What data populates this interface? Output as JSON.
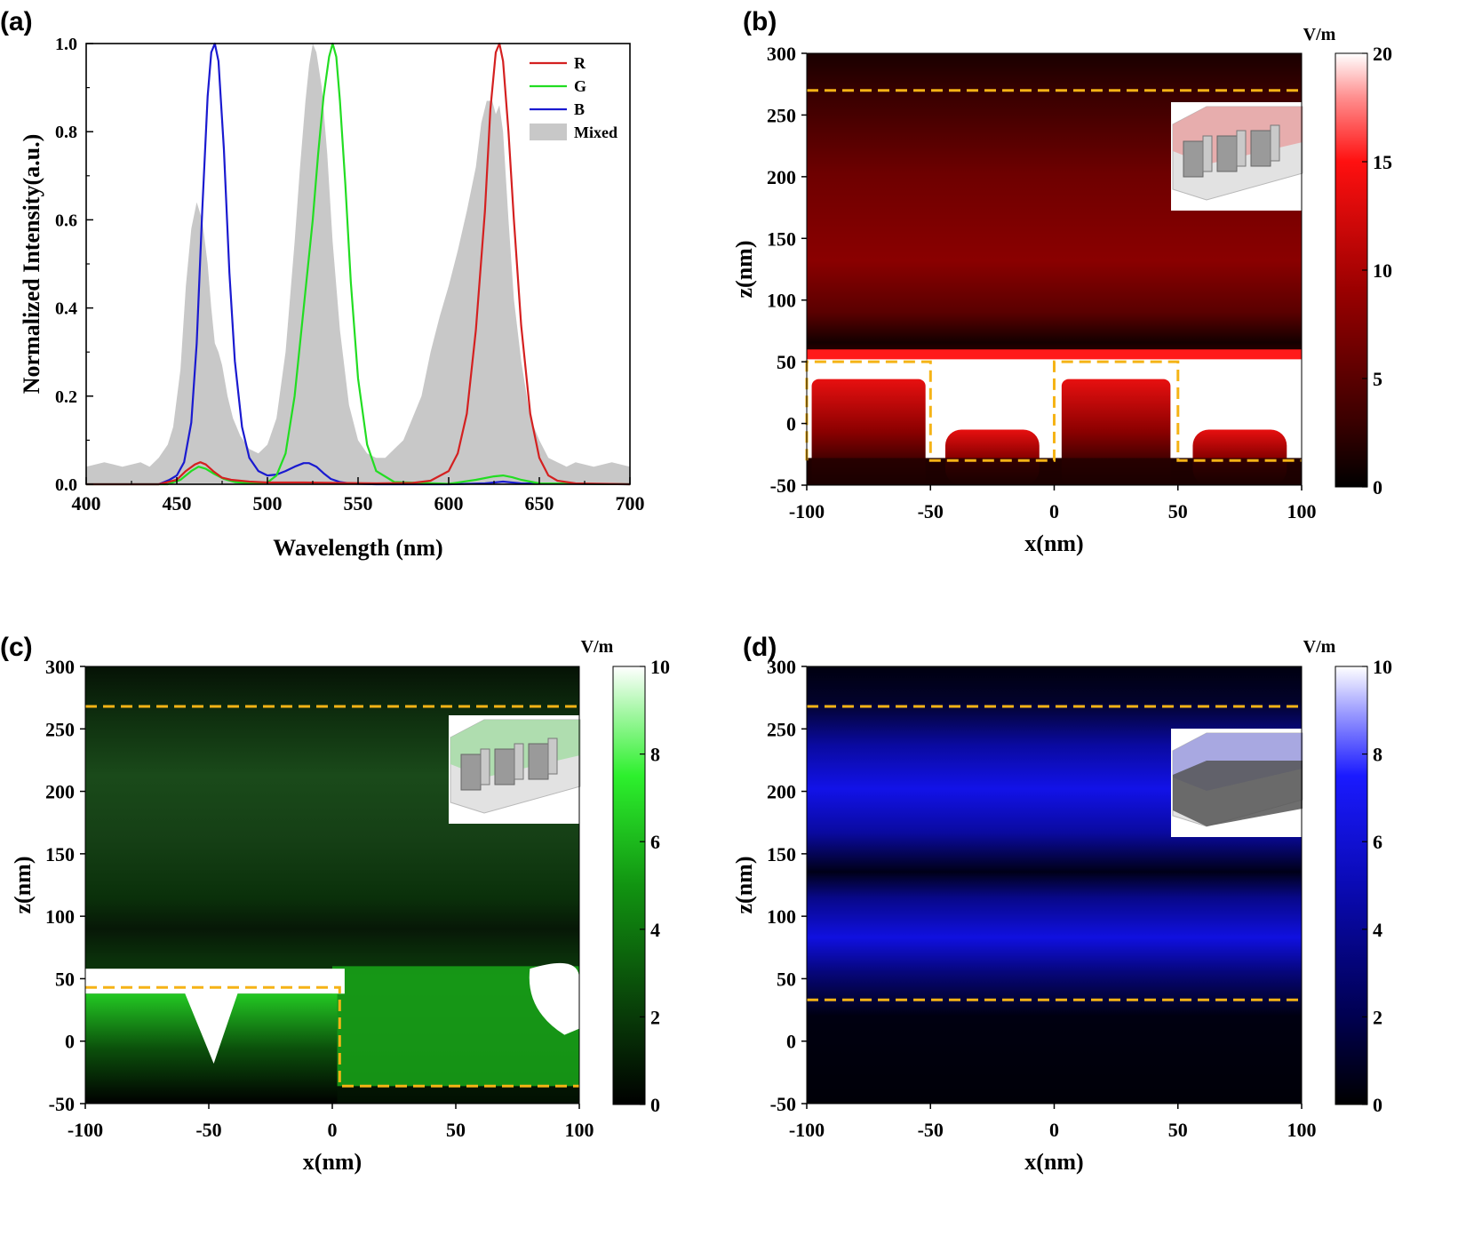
{
  "panels": {
    "a": "(a)",
    "b": "(b)",
    "c": "(c)",
    "d": "(d)"
  },
  "colors": {
    "R": "#d42020",
    "G": "#22dd22",
    "B": "#1a1ad0",
    "Mixed": "#c8c8c8",
    "guide": "#f5b316"
  },
  "chart_data": [
    {
      "type": "line",
      "panel": "a",
      "title": "",
      "xlabel": "Wavelength (nm)",
      "ylabel": "Normalized Intensity(a.u.)",
      "xlim": [
        400,
        700
      ],
      "ylim": [
        0,
        1.0
      ],
      "xticks": [
        400,
        450,
        500,
        550,
        600,
        650,
        700
      ],
      "yticks": [
        0.0,
        0.2,
        0.4,
        0.6,
        0.8,
        1.0
      ],
      "legend_position": "top-right",
      "series": [
        {
          "name": "R",
          "x": [
            400,
            440,
            450,
            455,
            460,
            463,
            466,
            470,
            475,
            480,
            490,
            500,
            520,
            540,
            560,
            580,
            590,
            600,
            605,
            610,
            615,
            620,
            623,
            626,
            628,
            630,
            633,
            636,
            640,
            645,
            650,
            655,
            660,
            670,
            700
          ],
          "y": [
            0,
            0,
            0.01,
            0.03,
            0.045,
            0.05,
            0.045,
            0.03,
            0.015,
            0.01,
            0.006,
            0.004,
            0.004,
            0.003,
            0.002,
            0.003,
            0.008,
            0.03,
            0.07,
            0.16,
            0.35,
            0.62,
            0.85,
            0.98,
            1.0,
            0.96,
            0.8,
            0.6,
            0.36,
            0.16,
            0.06,
            0.02,
            0.008,
            0.002,
            0
          ]
        },
        {
          "name": "G",
          "x": [
            400,
            445,
            452,
            458,
            462,
            466,
            470,
            476,
            482,
            490,
            500,
            505,
            510,
            515,
            520,
            525,
            528,
            531,
            534,
            536,
            538,
            540,
            543,
            546,
            550,
            555,
            560,
            570,
            600,
            615,
            625,
            630,
            635,
            640,
            650,
            700
          ],
          "y": [
            0,
            0,
            0.01,
            0.03,
            0.04,
            0.035,
            0.025,
            0.012,
            0.005,
            0.002,
            0.004,
            0.02,
            0.07,
            0.2,
            0.4,
            0.6,
            0.75,
            0.88,
            0.97,
            1.0,
            0.97,
            0.87,
            0.68,
            0.46,
            0.24,
            0.09,
            0.03,
            0.005,
            0.001,
            0.01,
            0.018,
            0.02,
            0.016,
            0.01,
            0.002,
            0
          ]
        },
        {
          "name": "B",
          "x": [
            400,
            440,
            446,
            450,
            454,
            458,
            461,
            464,
            467,
            469,
            471,
            473,
            476,
            479,
            482,
            486,
            490,
            495,
            500,
            505,
            510,
            515,
            520,
            523,
            527,
            531,
            535,
            540,
            545,
            550,
            560,
            600,
            620,
            630,
            640,
            700
          ],
          "y": [
            0,
            0,
            0.01,
            0.02,
            0.05,
            0.14,
            0.32,
            0.62,
            0.88,
            0.98,
            1.0,
            0.96,
            0.76,
            0.48,
            0.28,
            0.13,
            0.06,
            0.03,
            0.02,
            0.022,
            0.03,
            0.04,
            0.048,
            0.048,
            0.04,
            0.025,
            0.012,
            0.005,
            0.002,
            0.001,
            0,
            0,
            0.002,
            0.006,
            0.002,
            0
          ]
        },
        {
          "name": "Mixed",
          "style": "filled",
          "x": [
            400,
            410,
            420,
            430,
            435,
            440,
            445,
            448,
            452,
            455,
            458,
            461,
            464,
            467,
            469,
            471,
            473,
            475,
            478,
            481,
            485,
            490,
            495,
            500,
            505,
            510,
            515,
            518,
            521,
            523,
            525,
            527,
            530,
            533,
            536,
            540,
            545,
            550,
            555,
            560,
            565,
            570,
            575,
            580,
            585,
            590,
            595,
            600,
            605,
            610,
            615,
            618,
            621,
            624,
            626,
            628,
            630,
            633,
            636,
            640,
            645,
            650,
            655,
            660,
            665,
            670,
            680,
            690,
            700
          ],
          "y": [
            0.04,
            0.05,
            0.04,
            0.05,
            0.04,
            0.06,
            0.09,
            0.13,
            0.26,
            0.45,
            0.58,
            0.64,
            0.6,
            0.5,
            0.4,
            0.32,
            0.3,
            0.27,
            0.2,
            0.15,
            0.11,
            0.08,
            0.07,
            0.09,
            0.15,
            0.3,
            0.55,
            0.72,
            0.87,
            0.95,
            1.0,
            0.98,
            0.9,
            0.75,
            0.55,
            0.35,
            0.18,
            0.1,
            0.07,
            0.06,
            0.06,
            0.08,
            0.1,
            0.15,
            0.2,
            0.3,
            0.38,
            0.45,
            0.53,
            0.62,
            0.72,
            0.82,
            0.87,
            0.87,
            0.84,
            0.86,
            0.8,
            0.6,
            0.42,
            0.28,
            0.15,
            0.1,
            0.06,
            0.05,
            0.04,
            0.05,
            0.04,
            0.05,
            0.04
          ]
        }
      ]
    },
    {
      "type": "heatmap",
      "panel": "b",
      "color": "red",
      "xlabel": "x(nm)",
      "ylabel": "z(nm)",
      "xlim": [
        -100,
        100
      ],
      "ylim": [
        -50,
        300
      ],
      "xticks": [
        -100,
        -50,
        0,
        50,
        100
      ],
      "yticks": [
        -50,
        0,
        50,
        100,
        150,
        200,
        250,
        300
      ],
      "colorbar": {
        "unit": "V/m",
        "range": [
          0,
          20
        ],
        "ticks": [
          0,
          5,
          10,
          15,
          20
        ]
      },
      "guides": [
        {
          "x": [
            -100,
            100
          ],
          "z": [
            270,
            270
          ]
        },
        {
          "x": [
            -100,
            -100,
            -50,
            -50,
            0,
            0,
            50,
            50,
            100
          ],
          "z": [
            -30,
            50,
            50,
            -30,
            -30,
            50,
            50,
            -30,
            -30
          ]
        }
      ]
    },
    {
      "type": "heatmap",
      "panel": "c",
      "color": "green",
      "xlabel": "x(nm)",
      "ylabel": "z(nm)",
      "xlim": [
        -100,
        100
      ],
      "ylim": [
        -50,
        300
      ],
      "xticks": [
        -100,
        -50,
        0,
        50,
        100
      ],
      "yticks": [
        -50,
        0,
        50,
        100,
        150,
        200,
        250,
        300
      ],
      "colorbar": {
        "unit": "V/m",
        "range": [
          0,
          10
        ],
        "ticks": [
          0,
          2,
          4,
          6,
          8,
          10
        ]
      },
      "guides": [
        {
          "x": [
            -100,
            100
          ],
          "z": [
            268,
            268
          ]
        },
        {
          "x": [
            -100,
            3,
            3,
            100
          ],
          "z": [
            43,
            43,
            -36,
            -36
          ]
        }
      ]
    },
    {
      "type": "heatmap",
      "panel": "d",
      "color": "blue",
      "xlabel": "x(nm)",
      "ylabel": "z(nm)",
      "xlim": [
        -100,
        100
      ],
      "ylim": [
        -50,
        300
      ],
      "xticks": [
        -100,
        -50,
        0,
        50,
        100
      ],
      "yticks": [
        -50,
        0,
        50,
        100,
        150,
        200,
        250,
        300
      ],
      "colorbar": {
        "unit": "V/m",
        "range": [
          0,
          10
        ],
        "ticks": [
          0,
          2,
          4,
          6,
          8,
          10
        ]
      },
      "guides": [
        {
          "x": [
            -100,
            100
          ],
          "z": [
            268,
            268
          ]
        },
        {
          "x": [
            -100,
            100
          ],
          "z": [
            33,
            33
          ]
        }
      ]
    }
  ]
}
